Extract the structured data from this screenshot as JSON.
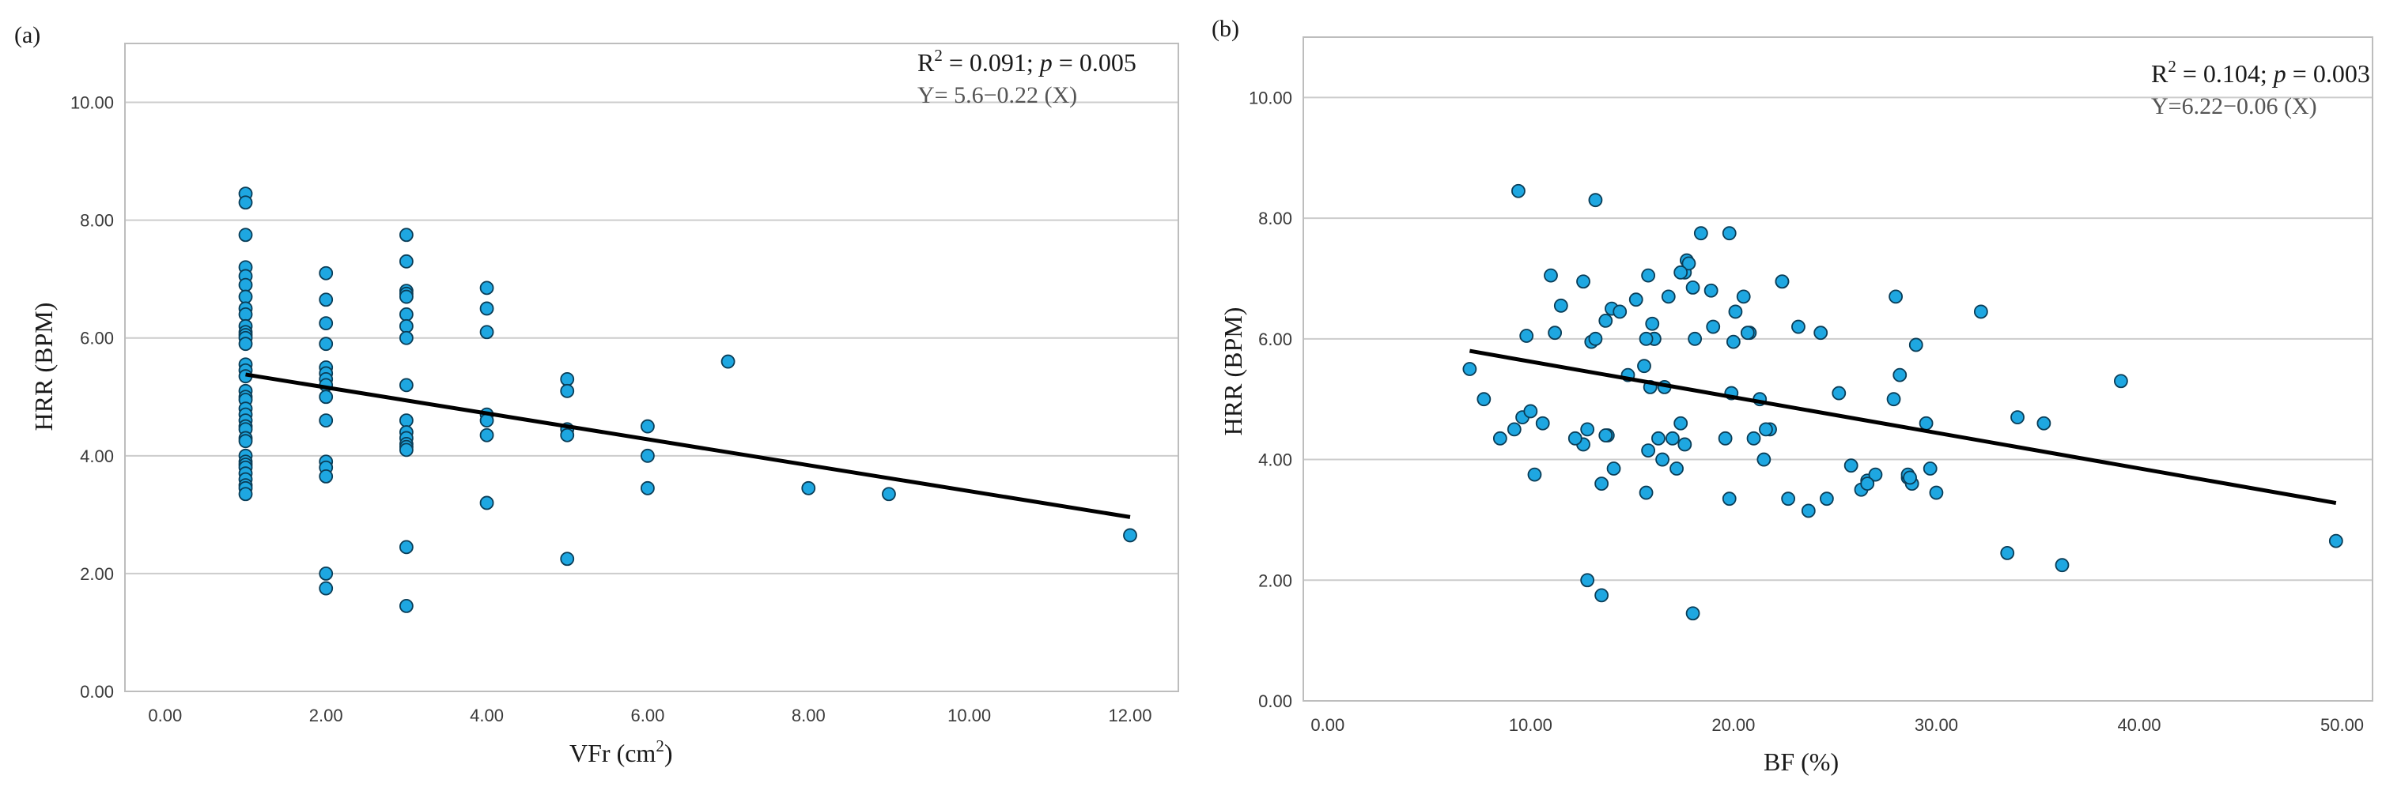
{
  "chart_data": [
    {
      "type": "scatter",
      "panel_label": "(a)",
      "xlabel": "VFr (cm",
      "xlabel_sup": "2",
      "xlabel_end": ")",
      "ylabel": "HRR (BPM)",
      "xlim": [
        -0.5,
        12.6
      ],
      "ylim": [
        0,
        11
      ],
      "xticks": [
        0,
        2,
        4,
        6,
        8,
        10,
        12
      ],
      "xtick_labels": [
        "0.00",
        "2.00",
        "4.00",
        "6.00",
        "8.00",
        "10.00",
        "12.00"
      ],
      "yticks": [
        0,
        2,
        4,
        6,
        8,
        10
      ],
      "ytick_labels": [
        "0.00",
        "2.00",
        "4.00",
        "6.00",
        "8.00",
        "10.00"
      ],
      "stats": {
        "r_label": "R",
        "r_sup": "2",
        "r_value": " = 0.091; ",
        "p_label": "p",
        "p_value": " = 0.005"
      },
      "equation": "Y= 5.6−0.22 (X)",
      "fit_line": {
        "x1": 1,
        "y1": 5.38,
        "x2": 12,
        "y2": 2.96
      },
      "x": [
        1,
        1,
        1,
        1,
        1,
        1,
        1,
        1,
        1,
        1,
        1,
        1,
        1,
        1,
        1,
        1,
        1,
        1,
        1,
        1,
        1,
        1,
        1,
        1,
        1,
        1,
        1,
        1,
        1,
        1,
        1,
        1,
        1,
        1,
        1,
        1,
        2,
        2,
        2,
        2,
        2,
        2,
        2,
        2,
        2,
        2,
        2,
        2,
        2,
        2,
        2,
        3,
        3,
        3,
        3,
        3,
        3,
        3,
        3,
        3,
        3,
        3,
        3,
        3,
        3,
        3,
        3,
        3,
        4,
        4,
        4,
        4,
        4,
        4,
        4,
        5,
        5,
        5,
        5,
        5,
        6,
        6,
        6,
        7,
        8,
        9,
        12
      ],
      "y": [
        8.45,
        8.3,
        7.75,
        7.2,
        7.05,
        6.9,
        6.7,
        6.5,
        6.4,
        6.2,
        6.1,
        6.05,
        6.0,
        5.9,
        5.55,
        5.45,
        5.35,
        5.1,
        5.0,
        4.95,
        4.8,
        4.7,
        4.6,
        4.5,
        4.45,
        4.3,
        4.25,
        4.0,
        3.9,
        3.85,
        3.8,
        3.7,
        3.6,
        3.5,
        3.45,
        3.35,
        7.1,
        6.65,
        6.25,
        5.9,
        5.5,
        5.4,
        5.3,
        5.2,
        5.0,
        4.6,
        3.9,
        3.8,
        3.65,
        2.0,
        1.75,
        7.75,
        7.3,
        6.8,
        6.75,
        6.7,
        6.4,
        6.2,
        6.0,
        5.2,
        4.6,
        4.4,
        4.3,
        4.2,
        4.15,
        4.1,
        2.45,
        1.45,
        6.85,
        6.5,
        6.1,
        4.7,
        4.6,
        4.35,
        3.2,
        5.3,
        5.1,
        4.45,
        4.35,
        2.25,
        4.5,
        4.0,
        3.45,
        5.6,
        3.45,
        3.35,
        2.65
      ]
    },
    {
      "type": "scatter",
      "panel_label": "(b)",
      "xlabel": "BF (%)",
      "ylabel": "HRR (BPM)",
      "xlim": [
        -1.2,
        51.5
      ],
      "ylim": [
        0,
        11
      ],
      "xticks": [
        0,
        10,
        20,
        30,
        40,
        50
      ],
      "xtick_labels": [
        "0.00",
        "10.00",
        "20.00",
        "30.00",
        "40.00",
        "50.00"
      ],
      "yticks": [
        0,
        2,
        4,
        6,
        8,
        10
      ],
      "ytick_labels": [
        "0.00",
        "2.00",
        "4.00",
        "6.00",
        "8.00",
        "10.00"
      ],
      "stats": {
        "r_label": "R",
        "r_sup": "2",
        "r_value": " = 0.104; ",
        "p_label": "p",
        "p_value": " = 0.003"
      },
      "equation": "Y=6.22−0.06 (X)",
      "fit_line": {
        "x1": 7.0,
        "y1": 5.8,
        "x2": 49.7,
        "y2": 3.28
      },
      "x": [
        7,
        7.7,
        8.5,
        9.2,
        9.4,
        9.6,
        10.0,
        10.2,
        10.6,
        11.0,
        11.2,
        11.5,
        12.6,
        12.8,
        13.0,
        13.2,
        13.5,
        13.7,
        13.8,
        14.0,
        14.1,
        14.4,
        14.8,
        15.2,
        15.6,
        15.7,
        15.8,
        15.9,
        16.1,
        16.3,
        16.6,
        16.8,
        17.0,
        17.2,
        17.4,
        17.6,
        17.7,
        17.8,
        18.0,
        18.4,
        18.9,
        19.0,
        19.6,
        19.8,
        19.9,
        20.0,
        20.1,
        20.5,
        20.8,
        21.0,
        21.3,
        21.5,
        21.8,
        22.4,
        22.7,
        23.2,
        23.7,
        24.3,
        24.6,
        25.2,
        25.8,
        26.3,
        26.6,
        27.0,
        27.9,
        28.0,
        28.2,
        28.6,
        28.8,
        29.0,
        29.5,
        30.0,
        32.2,
        33.5,
        34.0,
        35.3,
        36.2,
        39.1,
        49.7,
        12.8,
        13.2,
        13.5,
        18.0,
        12.6,
        15.8,
        16.1,
        16.5,
        17.6,
        19.8,
        21.6,
        26.6,
        28.6,
        28.7,
        29.7,
        16.0,
        17.4,
        15.7,
        18.1,
        20.7,
        22.4,
        12.2,
        9.8,
        13.7
      ],
      "y": [
        5.5,
        5.0,
        4.35,
        4.5,
        8.45,
        4.7,
        4.8,
        3.75,
        4.6,
        7.05,
        6.1,
        6.55,
        6.95,
        4.5,
        5.95,
        8.3,
        3.6,
        6.3,
        4.4,
        6.5,
        3.85,
        6.45,
        5.4,
        6.65,
        5.55,
        3.45,
        7.05,
        5.2,
        6.0,
        4.35,
        5.2,
        6.7,
        4.35,
        3.85,
        4.6,
        7.1,
        7.3,
        7.25,
        6.85,
        7.75,
        6.8,
        6.2,
        4.35,
        7.75,
        5.1,
        5.95,
        6.45,
        6.7,
        6.1,
        4.35,
        5.0,
        4.0,
        4.5,
        6.95,
        3.35,
        6.2,
        3.15,
        6.1,
        3.35,
        5.1,
        3.9,
        3.5,
        3.65,
        3.75,
        5.0,
        6.7,
        5.4,
        3.7,
        3.6,
        5.9,
        4.6,
        3.45,
        6.45,
        2.45,
        4.7,
        4.6,
        2.25,
        5.3,
        2.65,
        2.0,
        6.0,
        1.75,
        1.45,
        4.25,
        4.15,
        6.0,
        4.0,
        4.25,
        3.35,
        4.5,
        3.6,
        3.75,
        3.7,
        3.85,
        6.25,
        7.1,
        6.0,
        6.0,
        6.1,
        6.95,
        4.35,
        6.05,
        4.4
      ]
    }
  ]
}
